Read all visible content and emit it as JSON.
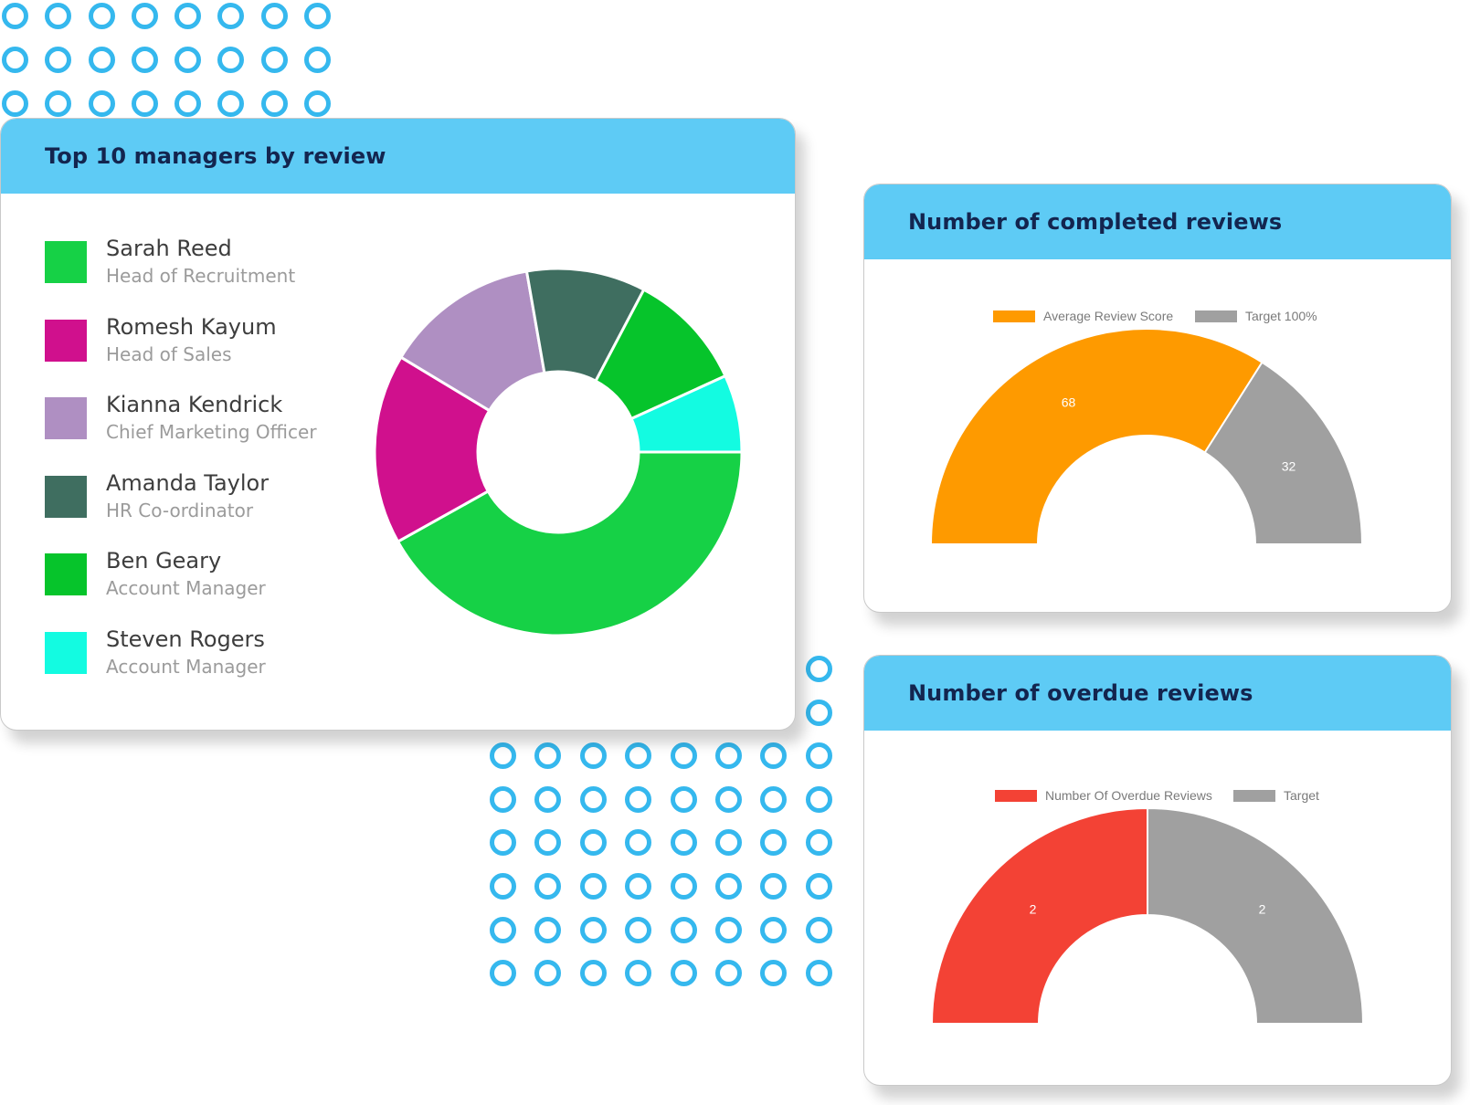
{
  "colors": {
    "header_bg": "#5ecbf5",
    "title_text": "#13254f",
    "dot_ring": "#35b8ee"
  },
  "managers_card": {
    "title": "Top 10 managers by review",
    "managers": [
      {
        "name": "Sarah Reed",
        "role": "Head of Recruitment",
        "color": "#16d146"
      },
      {
        "name": "Romesh Kayum",
        "role": "Head of Sales",
        "color": "#d0108d"
      },
      {
        "name": "Kianna Kendrick",
        "role": "Chief Marketing Officer",
        "color": "#af8fc2"
      },
      {
        "name": "Amanda Taylor",
        "role": "HR Co-ordinator",
        "color": "#3f6e60"
      },
      {
        "name": "Ben Geary",
        "role": "Account Manager",
        "color": "#06c42b"
      },
      {
        "name": "Steven Rogers",
        "role": "Account Manager",
        "color": "#13fbe1"
      }
    ]
  },
  "completed_card": {
    "title": "Number of completed reviews"
  },
  "overdue_card": {
    "title": "Number of overdue reviews"
  },
  "chart_data": [
    {
      "type": "pie",
      "variant": "donut",
      "labels": [
        "Sarah Reed",
        "Romesh Kayum",
        "Kianna Kendrick",
        "Amanda Taylor",
        "Ben Geary",
        "Steven Rogers"
      ],
      "values": [
        40,
        16,
        13,
        10,
        10,
        6.5
      ],
      "colors": [
        "#16d146",
        "#d0108d",
        "#af8fc2",
        "#3f6e60",
        "#06c42b",
        "#13fbe1"
      ],
      "legend": "left"
    },
    {
      "type": "pie",
      "variant": "half-donut",
      "legend_entries": [
        "Average Review Score",
        "Target 100%"
      ],
      "values": [
        68,
        32
      ],
      "value_labels": [
        "68",
        "32"
      ],
      "colors": [
        "#fe9a00",
        "#a0a0a0"
      ],
      "legend": "top"
    },
    {
      "type": "pie",
      "variant": "half-donut",
      "legend_entries": [
        "Number Of Overdue Reviews",
        "Target"
      ],
      "values": [
        2,
        2
      ],
      "value_labels": [
        "2",
        "2"
      ],
      "colors": [
        "#f34235",
        "#a0a0a0"
      ],
      "legend": "top"
    }
  ]
}
